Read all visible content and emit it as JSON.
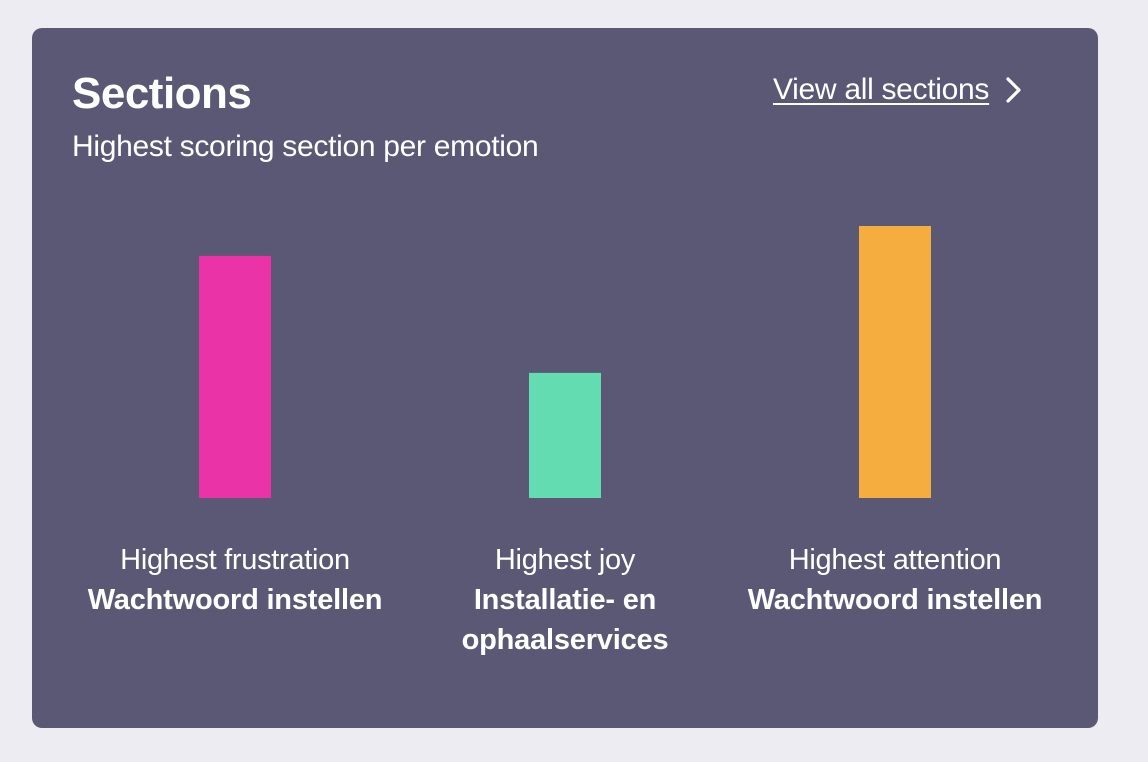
{
  "card": {
    "title": "Sections",
    "subtitle": "Highest scoring section per emotion",
    "view_all_label": "View all sections",
    "view_all_icon": "chevron-right-icon"
  },
  "chart_data": {
    "type": "bar",
    "categories": [
      "Highest frustration",
      "Highest joy",
      "Highest attention"
    ],
    "sections": [
      "Wachtwoord instellen",
      "Installatie- en ophaalservices",
      "Wachtwoord instellen"
    ],
    "values": [
      0.89,
      0.46,
      1.0
    ],
    "colors": [
      "#ea33a6",
      "#64dcb1",
      "#f5ad40"
    ],
    "grid": false,
    "legend": "none"
  }
}
